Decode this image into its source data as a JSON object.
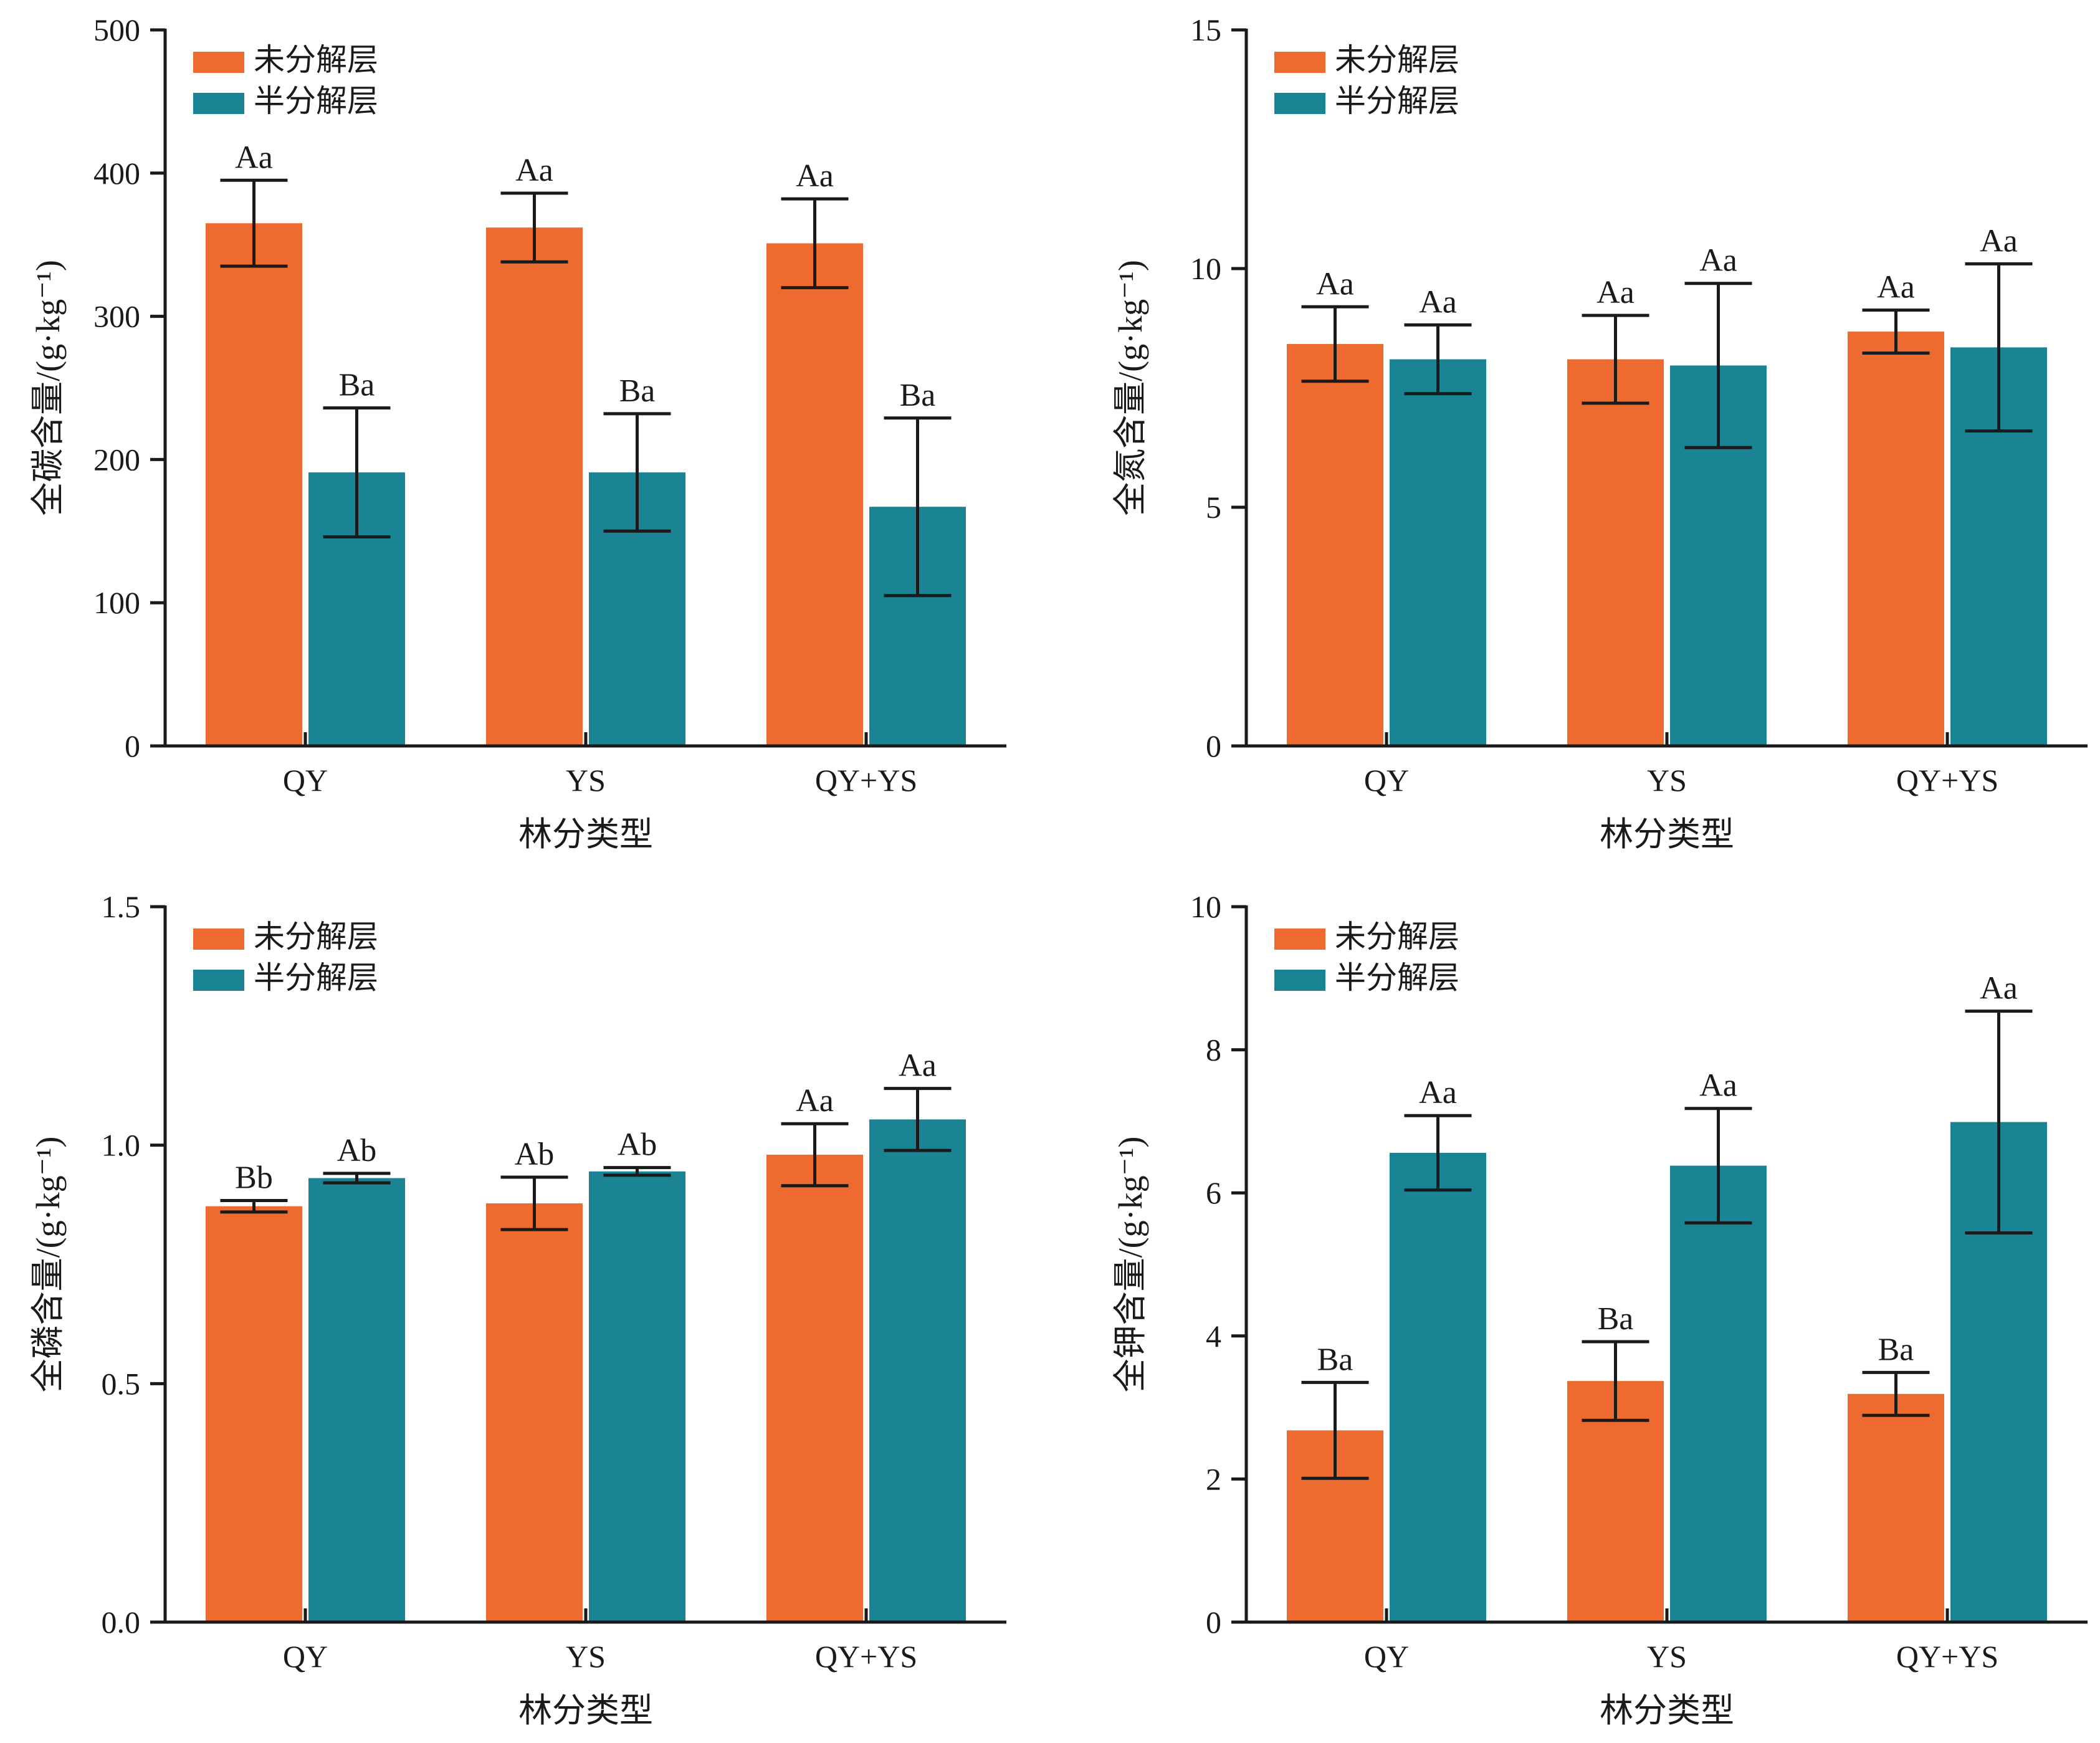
{
  "colors": {
    "undecomposed": "#EE6B30",
    "semi_decomposed": "#1B8494",
    "axis": "#1a1a1a"
  },
  "chart_data": [
    {
      "type": "bar",
      "ylabel": "全碳含量/(g·kg⁻¹)",
      "xlabel": "林分类型",
      "categories": [
        "QY",
        "YS",
        "QY+YS"
      ],
      "ylim": [
        0,
        500
      ],
      "yticks": [
        0,
        100,
        200,
        300,
        400,
        500
      ],
      "ytick_labels": [
        "0",
        "100",
        "200",
        "300",
        "400",
        "500"
      ],
      "legend_position": "top-left",
      "series": [
        {
          "name": "未分解层",
          "values": [
            365,
            362,
            351
          ],
          "errors": [
            30,
            24,
            31
          ],
          "labels": [
            "Aa",
            "Aa",
            "Aa"
          ]
        },
        {
          "name": "半分解层",
          "values": [
            191,
            191,
            167
          ],
          "errors": [
            45,
            41,
            62
          ],
          "labels": [
            "Ba",
            "Ba",
            "Ba"
          ]
        }
      ]
    },
    {
      "type": "bar",
      "ylabel": "全氮含量/(g·kg⁻¹)",
      "xlabel": "林分类型",
      "categories": [
        "QY",
        "YS",
        "QY+YS"
      ],
      "ylim": [
        0,
        15
      ],
      "yticks": [
        0,
        5,
        10,
        15
      ],
      "ytick_labels": [
        "0",
        "5",
        "10",
        "15"
      ],
      "legend_position": "top-left",
      "series": [
        {
          "name": "未分解层",
          "values": [
            8.42,
            8.1,
            8.68
          ],
          "errors": [
            0.78,
            0.92,
            0.45
          ],
          "labels": [
            "Aa",
            "Aa",
            "Aa"
          ]
        },
        {
          "name": "半分解层",
          "values": [
            8.1,
            7.97,
            8.35
          ],
          "errors": [
            0.72,
            1.72,
            1.75
          ],
          "labels": [
            "Aa",
            "Aa",
            "Aa"
          ]
        }
      ]
    },
    {
      "type": "bar",
      "ylabel": "全磷含量/(g·kg⁻¹)",
      "xlabel": "林分类型",
      "categories": [
        "QY",
        "YS",
        "QY+YS"
      ],
      "ylim": [
        0,
        1.5
      ],
      "yticks": [
        0,
        0.5,
        1.0,
        1.5
      ],
      "ytick_labels": [
        "0.0",
        "0.5",
        "1.0",
        "1.5"
      ],
      "legend_position": "top-left",
      "series": [
        {
          "name": "未分解层",
          "values": [
            0.872,
            0.878,
            0.98
          ],
          "errors": [
            0.012,
            0.055,
            0.065
          ],
          "labels": [
            "Bb",
            "Ab",
            "Aa"
          ]
        },
        {
          "name": "半分解层",
          "values": [
            0.931,
            0.945,
            1.054
          ],
          "errors": [
            0.01,
            0.008,
            0.065
          ],
          "labels": [
            "Ab",
            "Ab",
            "Aa"
          ]
        }
      ]
    },
    {
      "type": "bar",
      "ylabel": "全钾含量/(g·kg⁻¹)",
      "xlabel": "林分类型",
      "categories": [
        "QY",
        "YS",
        "QY+YS"
      ],
      "ylim": [
        0,
        10
      ],
      "yticks": [
        0,
        2,
        4,
        6,
        8,
        10
      ],
      "ytick_labels": [
        "0",
        "2",
        "4",
        "6",
        "8",
        "10"
      ],
      "legend_position": "top-left",
      "series": [
        {
          "name": "未分解层",
          "values": [
            2.68,
            3.37,
            3.19
          ],
          "errors": [
            0.67,
            0.55,
            0.3
          ],
          "labels": [
            "Ba",
            "Ba",
            "Ba"
          ]
        },
        {
          "name": "半分解层",
          "values": [
            6.56,
            6.38,
            6.99
          ],
          "errors": [
            0.52,
            0.8,
            1.55
          ],
          "labels": [
            "Aa",
            "Aa",
            "Aa"
          ]
        }
      ]
    }
  ]
}
